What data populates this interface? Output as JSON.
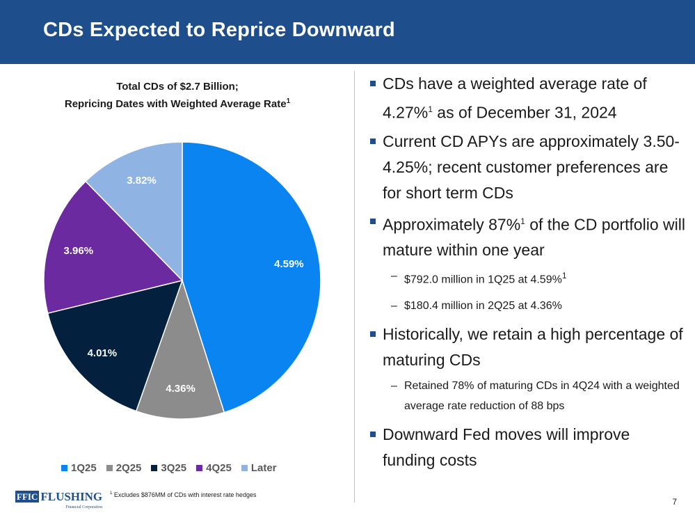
{
  "header": {
    "title": "CDs Expected to Reprice Downward"
  },
  "chart_data": {
    "type": "pie",
    "title_line1": "Total CDs of $2.7 Billion;",
    "title_line2": "Repricing Dates with Weighted Average Rate",
    "title_footnote_marker": "1",
    "categories": [
      "1Q25",
      "2Q25",
      "3Q25",
      "4Q25",
      "Later"
    ],
    "values": [
      45.1,
      10.3,
      15.8,
      16.5,
      12.3
    ],
    "data_labels": [
      "4.59%",
      "4.36%",
      "4.01%",
      "3.96%",
      "3.82%"
    ],
    "colors": [
      "#0a84f0",
      "#8c8c8c",
      "#03213f",
      "#6b2aa0",
      "#8fb4e3"
    ],
    "label_colors": [
      "#ffffff",
      "#ffffff",
      "#ffffff",
      "#ffffff",
      "#ffffff"
    ],
    "legend_position": "bottom"
  },
  "bullets": {
    "b1": {
      "part1": "CDs have a weighted average rate of 4.27%",
      "sup": "1",
      "part2": " as of December 31, 2024"
    },
    "b2": {
      "text": "Current CD APYs are approximately 3.50-4.25%; recent customer preferences are for short term CDs"
    },
    "b3": {
      "part1": "Approximately 87%",
      "sup": "1",
      "part2": " of the CD portfolio will mature within one year"
    },
    "b3_sub1": {
      "part1": "$792.0 million in 1Q25 at 4.59%",
      "sup": "1"
    },
    "b3_sub2": {
      "text": "$180.4 million in 2Q25 at 4.36%"
    },
    "b4": {
      "text": "Historically, we retain a high percentage of maturing CDs"
    },
    "b4_sub1": {
      "text": "Retained 78% of maturing CDs in 4Q24 with a weighted average rate reduction of 88 bps"
    },
    "b5": {
      "text": "Downward Fed moves will improve funding costs"
    },
    "dash": "–"
  },
  "footer": {
    "logo_box": "FFIC",
    "logo_name": "FLUSHING",
    "logo_sub": "Financial Corporation",
    "footnote_marker": "1",
    "footnote_text": "Excludes $876MM of CDs with interest rate hedges",
    "page_number": "7"
  }
}
